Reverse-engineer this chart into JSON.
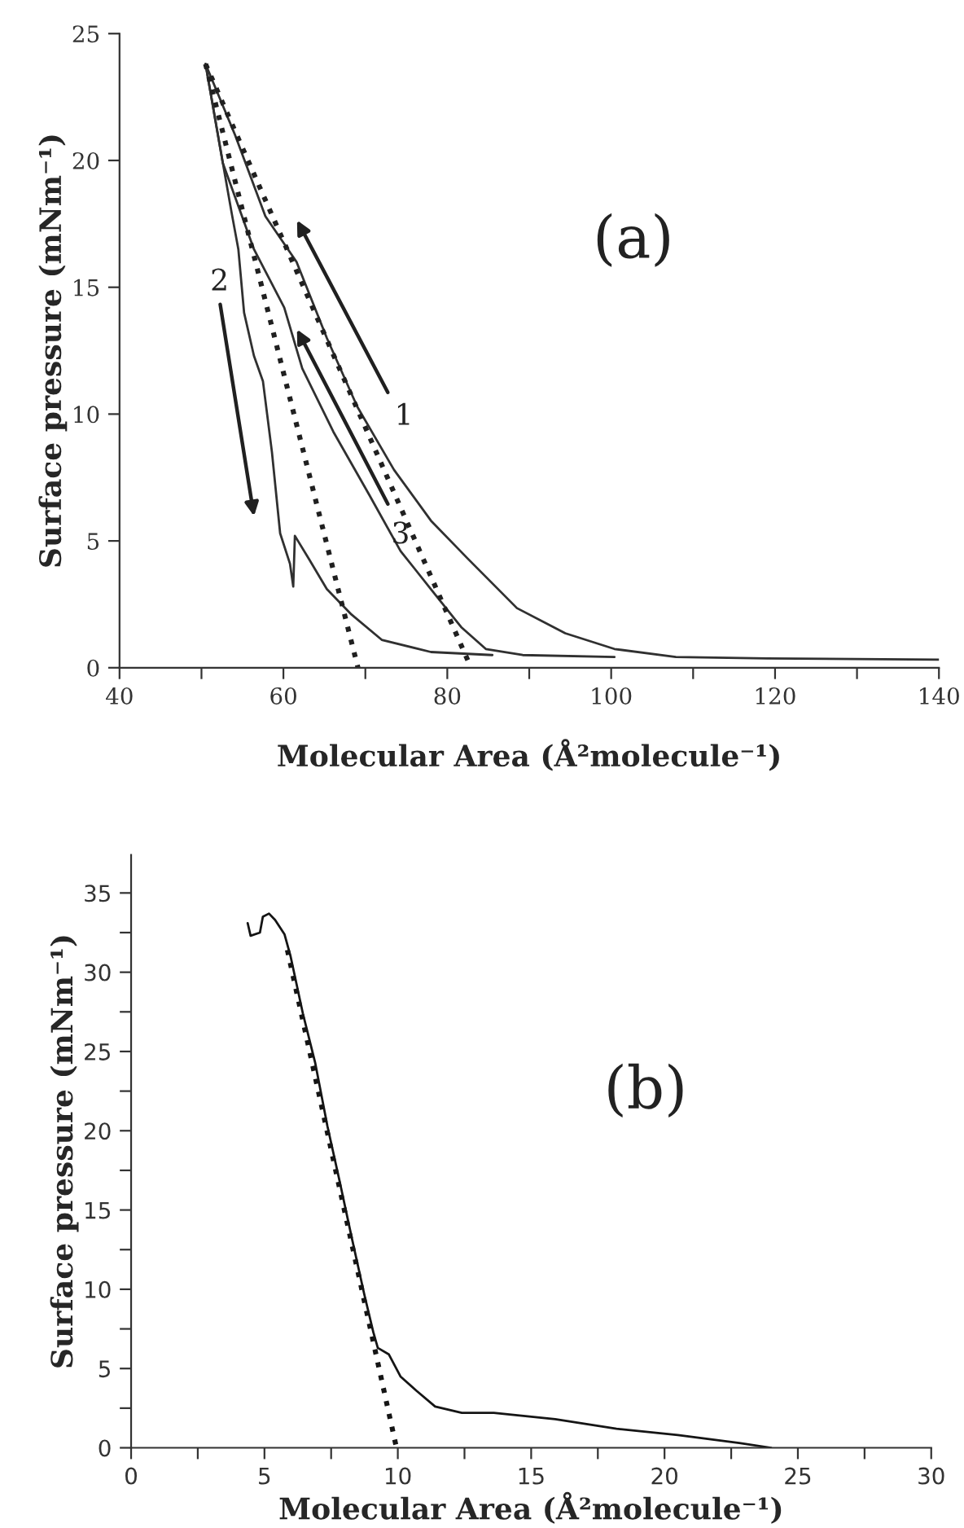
{
  "chart_data": [
    {
      "type": "line",
      "xlabel": "Molecular Area (Å²molecule⁻¹)",
      "ylabel": "Surface pressure (mNm⁻¹)",
      "xlim": [
        40,
        140
      ],
      "ylim": [
        0,
        25
      ],
      "xticks": [
        40,
        60,
        80,
        100,
        120,
        140,
        {
          "value": 50,
          "label": null
        },
        {
          "value": 70,
          "label": null
        },
        {
          "value": 90,
          "label": null
        },
        {
          "value": 110,
          "label": null
        },
        {
          "value": 130,
          "label": null
        }
      ],
      "yticks": [
        0,
        5,
        10,
        15,
        20,
        25
      ],
      "grid": false,
      "legend": false,
      "annotations": [
        "(a)",
        "1",
        "2",
        {
          "text": "3",
          "x": 74.3,
          "y": 4.6
        }
      ],
      "series": [
        {
          "color": "#303030",
          "line_style": "solid",
          "x": [
            50.5,
            54.1,
            57.8,
            61.6,
            65.3,
            69.0,
            73.5,
            78.0,
            82.5,
            88.5,
            94.4,
            100.4,
            107.9,
            119,
            140
          ],
          "values": [
            23.8,
            21.0,
            17.8,
            16.0,
            13.0,
            10.3,
            7.8,
            5.8,
            4.3,
            2.35,
            1.36,
            0.74,
            0.42,
            0.37,
            0.32
          ]
        },
        {
          "color": "#303030",
          "line_style": "solid",
          "x": [
            50.5,
            52.6,
            56.4,
            60.1,
            62.3,
            66.1,
            70.5,
            74.3,
            78.0,
            81.7,
            84.7,
            89.2,
            100.4
          ],
          "values": [
            23.8,
            19.9,
            16.5,
            14.2,
            11.8,
            9.3,
            6.8,
            4.6,
            3.1,
            1.6,
            0.74,
            0.5,
            0.42
          ]
        },
        {
          "color": "#303030",
          "line_style": "solid",
          "x": [
            50.5,
            51.9,
            53.7,
            54.5,
            55.2,
            56.4,
            57.5,
            58.6,
            59.6,
            60.8,
            61.2,
            61.4,
            63.1,
            65.3,
            68.3,
            72.0,
            78.0,
            85.5
          ],
          "values": [
            23.8,
            21.2,
            17.9,
            16.5,
            14.0,
            12.3,
            11.3,
            8.5,
            5.3,
            4.1,
            3.2,
            5.2,
            4.3,
            3.1,
            2.1,
            1.1,
            0.62,
            0.5
          ]
        },
        {
          "color": "#202020",
          "line_style": "dotted",
          "x": [
            50.5,
            69.1
          ],
          "values": [
            23.8,
            0
          ]
        },
        {
          "color": "#202020",
          "line_style": "dotted",
          "x": [
            50.5,
            82.9
          ],
          "values": [
            23.8,
            0
          ]
        }
      ]
    },
    {
      "type": "line",
      "xlabel": "Molecular Area (Å²molecule⁻¹)",
      "ylabel": "Surface pressure (mNm⁻¹)",
      "xlim": [
        0,
        30
      ],
      "ylim": [
        0,
        37.4
      ],
      "xticks": [
        0,
        5,
        10,
        15,
        20,
        25,
        30,
        {
          "value": 2.5,
          "label": null
        },
        {
          "value": 7.5,
          "label": null
        },
        {
          "value": 12.5,
          "label": null
        },
        {
          "value": 17.5,
          "label": null
        },
        {
          "value": 22.5,
          "label": null
        },
        {
          "value": 27.5,
          "label": null
        }
      ],
      "yticks": [
        0,
        5,
        10,
        15,
        20,
        25,
        30,
        35,
        {
          "value": 2.5,
          "label": null
        },
        {
          "value": 7.5,
          "label": null
        },
        {
          "value": 12.5,
          "label": null
        },
        {
          "value": 17.5,
          "label": null
        },
        {
          "value": 22.5,
          "label": null
        },
        {
          "value": 27.5,
          "label": null
        },
        {
          "value": 32.5,
          "label": null
        }
      ],
      "grid": false,
      "legend": false,
      "annotations": [
        "(b)"
      ],
      "series": [
        {
          "color": "#151515",
          "line_style": "solid",
          "x": [
            4.37,
            4.48,
            4.83,
            4.94,
            5.17,
            5.4,
            5.75,
            5.98,
            6.44,
            6.9,
            7.36,
            7.82,
            8.28,
            8.74,
            9.08,
            9.25,
            9.66,
            10.1,
            10.7,
            11.4,
            12.4,
            13.6,
            15.9,
            18.2,
            20.5,
            22.8,
            24.0
          ],
          "values": [
            33.1,
            32.3,
            32.5,
            33.5,
            33.7,
            33.3,
            32.4,
            31.0,
            27.4,
            24.3,
            20.3,
            16.8,
            13.2,
            9.7,
            7.3,
            6.3,
            5.9,
            4.5,
            3.6,
            2.6,
            2.2,
            2.2,
            1.8,
            1.2,
            0.8,
            0.3,
            0
          ]
        },
        {
          "color": "#151515",
          "line_style": "dotted",
          "x": [
            5.86,
            9.95
          ],
          "values": [
            31.4,
            0
          ]
        }
      ]
    }
  ]
}
